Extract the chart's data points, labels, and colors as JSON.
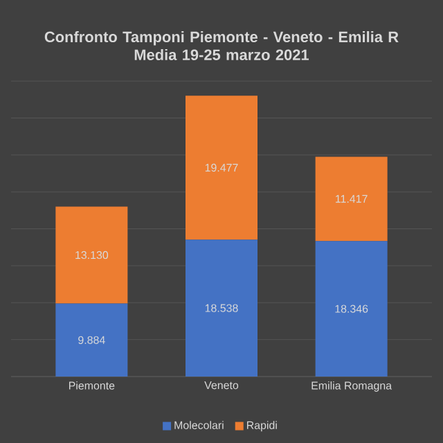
{
  "chart_data": {
    "type": "bar",
    "stacked": true,
    "title": "Confronto Tamponi Piemonte - Veneto - Emilia R",
    "subtitle": "Media 19-25 marzo 2021",
    "categories": [
      "Piemonte",
      "Veneto",
      "Emilia Romagna"
    ],
    "series": [
      {
        "name": "Molecolari",
        "color": "#4472c4",
        "values": [
          9884,
          18538,
          18346
        ],
        "value_labels": [
          "9.884",
          "18.538",
          "18.346"
        ]
      },
      {
        "name": "Rapidi",
        "color": "#ed7d31",
        "values": [
          13130,
          19477,
          11417
        ],
        "value_labels": [
          "13.130",
          "19.477",
          "11.417"
        ]
      }
    ],
    "grid": "y",
    "legend": "bottom",
    "tick_labels": "x"
  }
}
